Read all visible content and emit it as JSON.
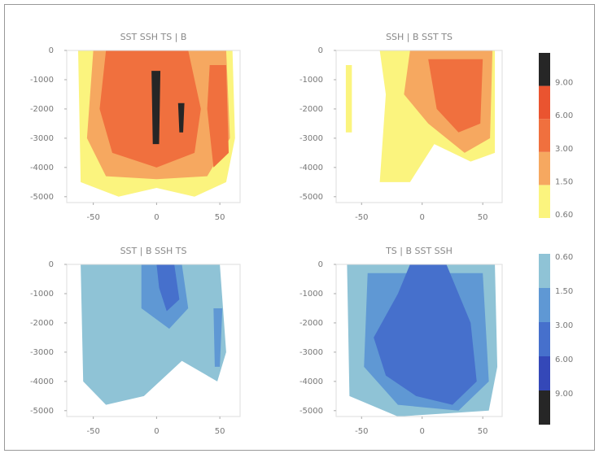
{
  "chart_data": [
    {
      "type": "contour",
      "title": "SST SSH TS  |  B",
      "xlim": [
        -71,
        66
      ],
      "ylim": [
        -5200,
        0
      ],
      "xticks": [
        -50,
        0,
        50
      ],
      "yticks": [
        0,
        -1000,
        -2000,
        -3000,
        -4000,
        -5000
      ]
    },
    {
      "type": "contour",
      "title": "SSH  |  B SST TS",
      "xlim": [
        -71,
        66
      ],
      "ylim": [
        -5200,
        0
      ],
      "xticks": [
        -50,
        0,
        50
      ],
      "yticks": [
        0,
        -1000,
        -2000,
        -3000,
        -4000,
        -5000
      ]
    },
    {
      "type": "contour",
      "title": "SST  |  B SSH TS",
      "xlim": [
        -71,
        66
      ],
      "ylim": [
        -5200,
        0
      ],
      "xticks": [
        -50,
        0,
        50
      ],
      "yticks": [
        0,
        -1000,
        -2000,
        -3000,
        -4000,
        -5000
      ]
    },
    {
      "type": "contour",
      "title": "TS  |  B SST SSH",
      "xlim": [
        -71,
        66
      ],
      "ylim": [
        -5200,
        0
      ],
      "xticks": [
        -50,
        0,
        50
      ],
      "yticks": [
        0,
        -1000,
        -2000,
        -3000,
        -4000,
        -5000
      ]
    }
  ],
  "colorbars": [
    {
      "levels": [
        {
          "value": 0.6,
          "label": "0.60"
        },
        {
          "value": 1.5,
          "label": "1.50"
        },
        {
          "value": 3,
          "label": "3.00"
        },
        {
          "value": 6,
          "label": "6.00"
        },
        {
          "value": 9,
          "label": "9.00"
        }
      ],
      "colors": [
        "#fbf47e",
        "#f6a860",
        "#f0703e",
        "#ea5430",
        "#262626"
      ]
    },
    {
      "levels": [
        {
          "value": -0.6,
          "label": "0.60"
        },
        {
          "value": -1.5,
          "label": "1.50"
        },
        {
          "value": -3,
          "label": "3.00"
        },
        {
          "value": -6,
          "label": "6.00"
        },
        {
          "value": -9,
          "label": "9.00"
        }
      ],
      "colors": [
        "#8fc3d6",
        "#5f98d4",
        "#4670cc",
        "#3448b8",
        "#262626"
      ]
    }
  ]
}
